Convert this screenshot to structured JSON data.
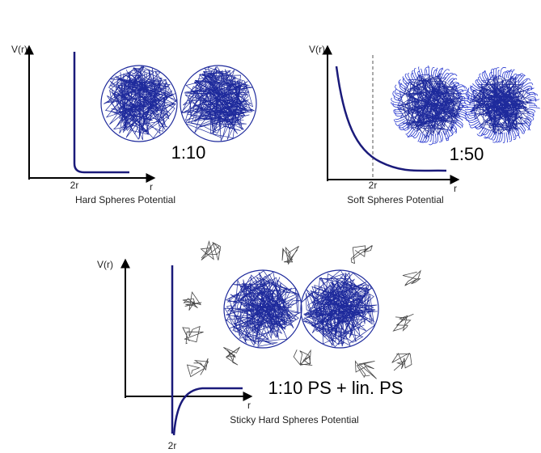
{
  "panels": [
    {
      "y_label": "V(r)",
      "x_label": "r",
      "contact_label": "2r",
      "ratio": "1:10",
      "caption": "Hard Spheres Potential"
    },
    {
      "y_label": "V(r)",
      "x_label": "r",
      "contact_label": "2r",
      "ratio": "1:50",
      "caption": "Soft Spheres Potential"
    },
    {
      "y_label": "V(r)",
      "x_label": "r",
      "contact_label": "2r",
      "ratio": "1:10 PS + lin. PS",
      "caption": "Sticky Hard Spheres Potential"
    }
  ]
}
